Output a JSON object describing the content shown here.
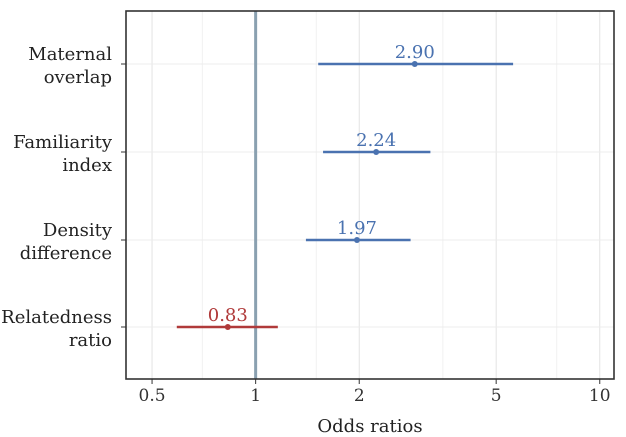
{
  "chart_data": {
    "type": "forest",
    "xlabel": "Odds ratios",
    "ylabel": "",
    "x_scale": "log",
    "xlim": [
      0.42,
      11.0
    ],
    "xticks": [
      0.5,
      1,
      2,
      5,
      10
    ],
    "xtick_labels": [
      "0.5",
      "1",
      "2",
      "5",
      "10"
    ],
    "reference_line": 1,
    "grid": true,
    "rows": [
      {
        "label_lines": [
          "Maternal",
          "overlap"
        ],
        "estimate": 2.9,
        "lower": 1.52,
        "upper": 5.6,
        "label": "2.90",
        "color": "#4a72b0"
      },
      {
        "label_lines": [
          "Familiarity",
          "index"
        ],
        "estimate": 2.24,
        "lower": 1.57,
        "upper": 3.22,
        "label": "2.24",
        "color": "#4a72b0"
      },
      {
        "label_lines": [
          "Density",
          "difference"
        ],
        "estimate": 1.97,
        "lower": 1.4,
        "upper": 2.82,
        "label": "1.97",
        "color": "#4a72b0"
      },
      {
        "label_lines": [
          "Relatedness",
          "ratio"
        ],
        "estimate": 0.83,
        "lower": 0.59,
        "upper": 1.16,
        "label": "0.83",
        "color": "#b03a3a"
      }
    ]
  }
}
